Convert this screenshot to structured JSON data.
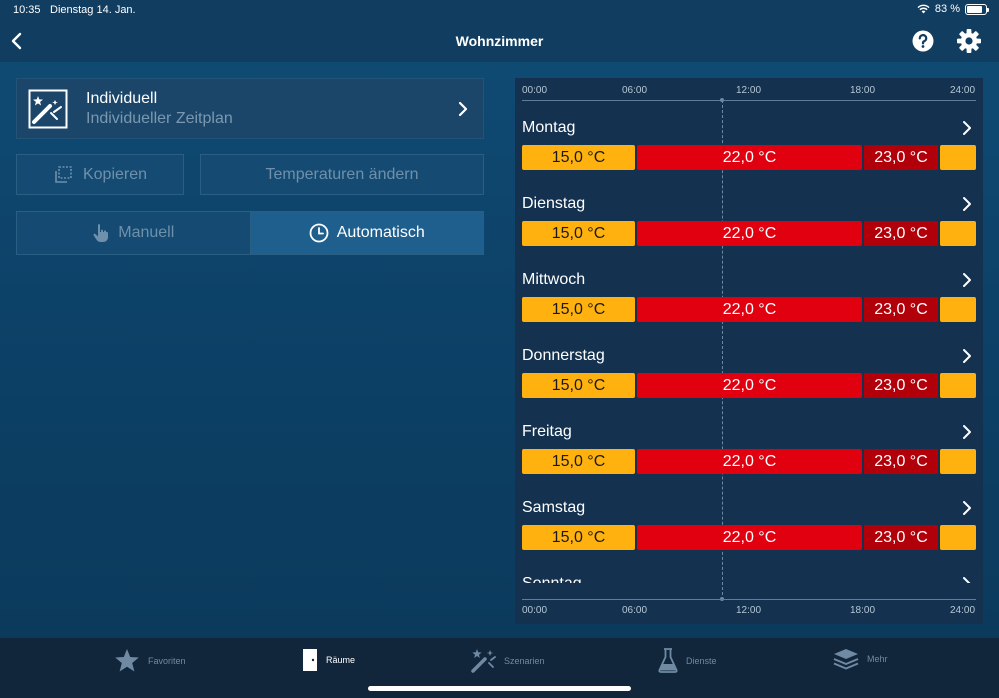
{
  "status": {
    "time": "10:35",
    "date": "Dienstag 14. Jan.",
    "battery": "83 %"
  },
  "nav": {
    "title": "Wohnzimmer",
    "icons": [
      "back-chevron-icon",
      "help-icon",
      "gear-icon"
    ]
  },
  "schedule": {
    "title": "Individuell",
    "subtitle": "Individueller Zeitplan"
  },
  "actions": {
    "copy_label": "Kopieren",
    "temp_label": "Temperaturen ändern"
  },
  "mode": {
    "manual_label": "Manuell",
    "auto_label": "Automatisch",
    "selected": "Automatisch"
  },
  "timeline": {
    "hours_top": [
      "00:00",
      "06:00",
      "12:00",
      "18:00",
      "24:00"
    ],
    "hours_bottom": [
      "00:00",
      "06:00",
      "12:00",
      "18:00",
      "24:00"
    ],
    "days": [
      {
        "name": "Montag",
        "low": "15,0 °C",
        "mid": "22,0 °C",
        "high": "23,0 °C"
      },
      {
        "name": "Dienstag",
        "low": "15,0 °C",
        "mid": "22,0 °C",
        "high": "23,0 °C"
      },
      {
        "name": "Mittwoch",
        "low": "15,0 °C",
        "mid": "22,0 °C",
        "high": "23,0 °C"
      },
      {
        "name": "Donnerstag",
        "low": "15,0 °C",
        "mid": "22,0 °C",
        "high": "23,0 °C"
      },
      {
        "name": "Freitag",
        "low": "15,0 °C",
        "mid": "22,0 °C",
        "high": "23,0 °C"
      },
      {
        "name": "Samstag",
        "low": "15,0 °C",
        "mid": "22,0 °C",
        "high": "23,0 °C"
      },
      {
        "name": "Sonntag",
        "low": "",
        "mid": "",
        "high": ""
      }
    ],
    "colors": {
      "low": "#ffb20f",
      "mid": "#e0000f",
      "high": "#b2000a"
    }
  },
  "tabs": [
    {
      "label": "Favoriten",
      "icon": "star-icon"
    },
    {
      "label": "Räume",
      "icon": "door-icon"
    },
    {
      "label": "Szenarien",
      "icon": "scenario-wand-icon"
    },
    {
      "label": "Dienste",
      "icon": "flask-icon"
    },
    {
      "label": "Mehr",
      "icon": "layers-icon"
    }
  ]
}
